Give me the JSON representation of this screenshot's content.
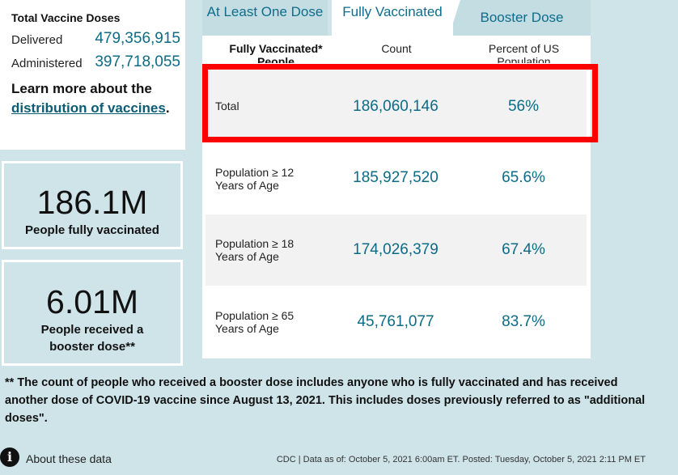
{
  "doses": {
    "title": "Total Vaccine Doses",
    "delivered_label": "Delivered",
    "delivered_value": "479,356,915",
    "administered_label": "Administered",
    "administered_value": "397,718,055"
  },
  "learn_more": {
    "prefix": "Learn more about the",
    "link_text": "distribution of vaccines",
    "suffix": "."
  },
  "cards": [
    {
      "value": "186.1M",
      "label": "People fully vaccinated"
    },
    {
      "value": "6.01M",
      "label": "People received a booster dose**"
    }
  ],
  "tabs": [
    {
      "label": "At Least One Dose"
    },
    {
      "label": "Fully Vaccinated"
    },
    {
      "label": "Booster Dose"
    }
  ],
  "table": {
    "headers": [
      "Fully Vaccinated* People",
      "Count",
      "Percent of US Population"
    ],
    "rows": [
      {
        "label": "Total",
        "count": "186,060,146",
        "percent": "56%"
      },
      {
        "label": "Population ≥ 12 Years of Age",
        "count": "185,927,520",
        "percent": "65.6%"
      },
      {
        "label": "Population ≥ 18 Years of Age",
        "count": "174,026,379",
        "percent": "67.4%"
      },
      {
        "label": "Population ≥ 65 Years of Age",
        "count": "45,761,077",
        "percent": "83.7%"
      }
    ]
  },
  "footnote": "** The count of people who received a booster dose includes anyone who is fully vaccinated and has received another dose of COVID-19 vaccine since August 13, 2021. This includes doses previously referred to as \"additional doses\".",
  "about": {
    "icon": "info-icon",
    "label": "About these data"
  },
  "source": "CDC | Data as of: October 5, 2021 6:00am ET. Posted: Tuesday, October 5, 2021 2:11 PM ET",
  "colors": {
    "accent": "#0c6b86",
    "background": "#cfe4e9",
    "highlight": "#ff0000"
  }
}
